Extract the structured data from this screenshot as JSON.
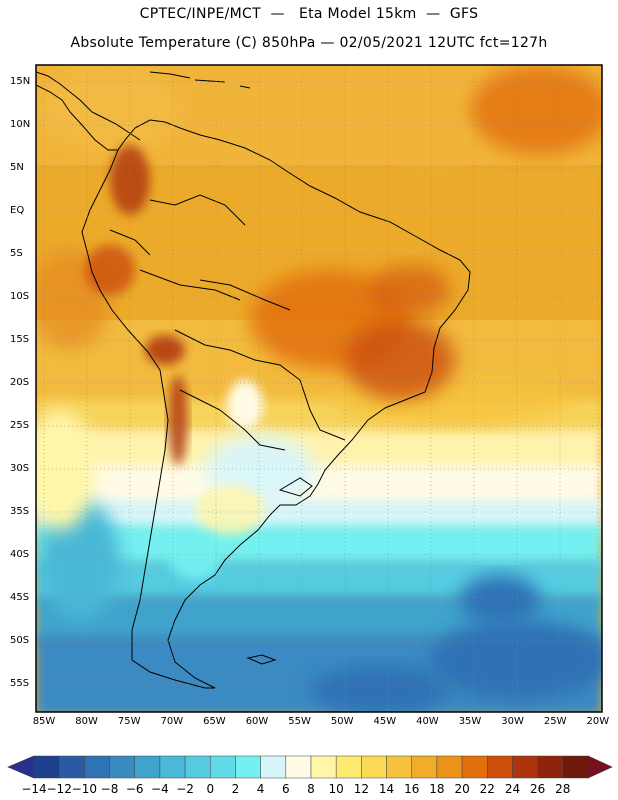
{
  "title": {
    "line1": "CPTEC/INPE/MCT  —   Eta Model 15km  —  GFS",
    "line2": "Absolute Temperature (C) 850hPa — 02/05/2021 12UTC fct=127h"
  },
  "map": {
    "lat_labels": [
      "15N",
      "10N",
      "5N",
      "EQ",
      "5S",
      "10S",
      "15S",
      "20S",
      "25S",
      "30S",
      "35S",
      "40S",
      "45S",
      "50S",
      "55S"
    ],
    "lon_labels": [
      "85W",
      "80W",
      "75W",
      "70W",
      "65W",
      "60W",
      "55W",
      "50W",
      "45W",
      "40W",
      "35W",
      "30W",
      "25W",
      "20W"
    ],
    "gridlines": true
  },
  "colorbar": {
    "labels": [
      "-14",
      "-12",
      "-10",
      "-8",
      "-6",
      "-4",
      "-2",
      "0",
      "2",
      "4",
      "6",
      "8",
      "10",
      "12",
      "14",
      "16",
      "18",
      "20",
      "22",
      "24",
      "26",
      "28"
    ],
    "colors": [
      "#1f3f8f",
      "#2a5aa3",
      "#2f72b5",
      "#3a8ac2",
      "#3fa3cc",
      "#4ab8d6",
      "#56cbe0",
      "#62dbe8",
      "#74f0f0",
      "#d8f6fa",
      "#fffbe6",
      "#fff6a8",
      "#ffe970",
      "#fada55",
      "#f6c23e",
      "#f1ac2a",
      "#ea9318",
      "#e2700c",
      "#cc4e0a",
      "#ad340c",
      "#8e240c",
      "#6e190a"
    ],
    "low_arrow": "#2a2f8f",
    "high_arrow": "#7a0f1f"
  }
}
